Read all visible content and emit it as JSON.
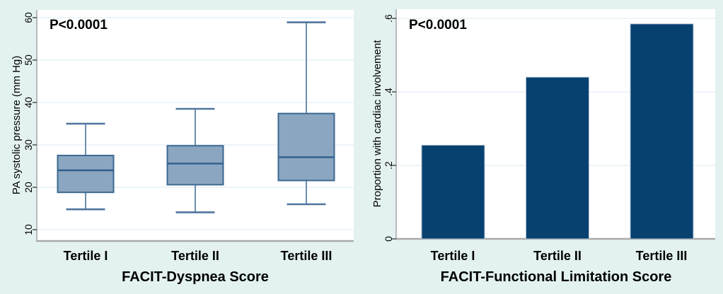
{
  "figure": {
    "background": "#e3f2f1"
  },
  "chart_data": [
    {
      "type": "box",
      "panel": "left",
      "annotation": "P<0.0001",
      "xlabel": "FACIT-Dyspnea Score",
      "ylabel": "PA systolic pressure (mm Hg)",
      "categories": [
        "Tertile I",
        "Tertile II",
        "Tertile III"
      ],
      "yticks": [
        10,
        20,
        30,
        40,
        50,
        60
      ],
      "ylim": [
        7.5,
        62
      ],
      "grid": true,
      "legend": "none",
      "boxes": [
        {
          "category": "Tertile I",
          "whisker_low": 14.8,
          "q1": 18.8,
          "median": 24.0,
          "q3": 27.5,
          "whisker_high": 35.0
        },
        {
          "category": "Tertile II",
          "whisker_low": 14.1,
          "q1": 20.6,
          "median": 25.6,
          "q3": 29.8,
          "whisker_high": 38.5
        },
        {
          "category": "Tertile III",
          "whisker_low": 16.0,
          "q1": 21.6,
          "median": 27.1,
          "q3": 37.4,
          "whisker_high": 58.9
        }
      ],
      "colors": {
        "box_fill": "#8ba6c1",
        "box_border": "#3c6992",
        "median": "#2f5f8c",
        "whisker": "#6b8db1",
        "whisker_cap": "#4f759d",
        "gridline": "#e7f1f7",
        "axis": "#a9a9a9",
        "tick": "#444444",
        "plot_bg": "#ffffff"
      }
    },
    {
      "type": "bar",
      "panel": "right",
      "annotation": "P<0.0001",
      "xlabel": "FACIT-Functional Limitation Score",
      "ylabel": "Proportion with cardiac involvement",
      "categories": [
        "Tertile I",
        "Tertile II",
        "Tertile III"
      ],
      "values": [
        0.255,
        0.44,
        0.585
      ],
      "yticks": [
        0,
        0.2,
        0.4,
        0.6
      ],
      "ytick_labels": [
        "0",
        ".2",
        ".4",
        ".6"
      ],
      "ylim": [
        0,
        0.62
      ],
      "grid": true,
      "legend": "none",
      "colors": {
        "bar_fill": "#064170",
        "bar_edge": "#b3c2d3",
        "gridline": "#e7f1f7",
        "axis": "#a9a9a9",
        "tick": "#444444",
        "plot_bg": "#ffffff"
      }
    }
  ]
}
